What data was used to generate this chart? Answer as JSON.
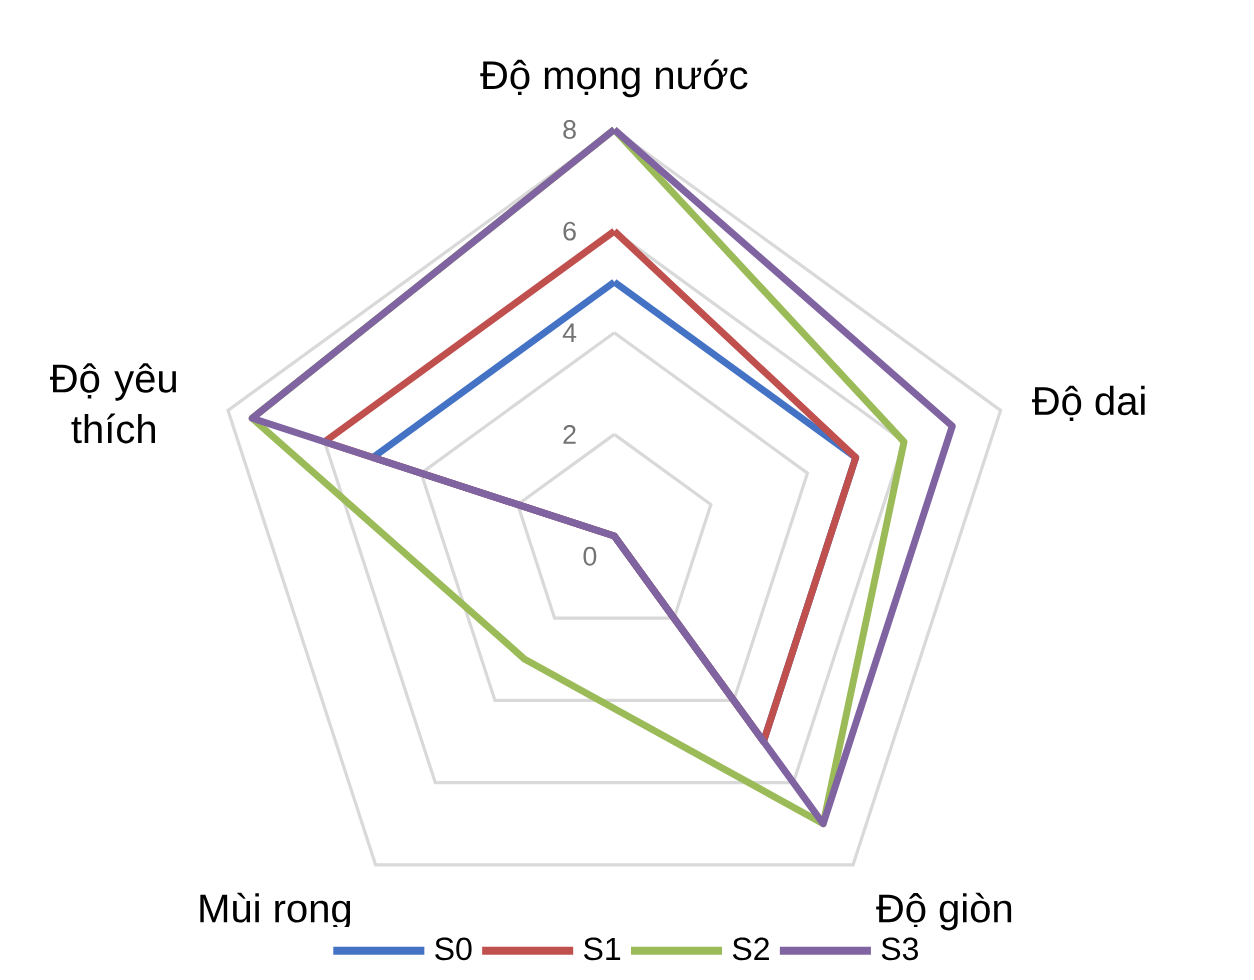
{
  "chart_data": {
    "type": "radar",
    "categories": [
      "Độ mọng nước",
      "Độ dai",
      "Độ giòn",
      "Mùi rong",
      "Độ yêu thích"
    ],
    "series": [
      {
        "name": "S0",
        "color": "#4472c4",
        "values": [
          5,
          5,
          5,
          0,
          5
        ]
      },
      {
        "name": "S1",
        "color": "#c0504d",
        "values": [
          6,
          5,
          5,
          0,
          6
        ]
      },
      {
        "name": "S2",
        "color": "#9bbb59",
        "values": [
          8,
          6,
          7,
          3,
          7.5
        ]
      },
      {
        "name": "S3",
        "color": "#8064a2",
        "values": [
          8,
          7,
          7,
          0,
          7.5
        ]
      }
    ],
    "ylim": [
      0,
      8
    ],
    "yticks": [
      0,
      2,
      4,
      6,
      8
    ],
    "grid": true,
    "legend": "bottom",
    "marker": "none",
    "line_style": "solid"
  }
}
